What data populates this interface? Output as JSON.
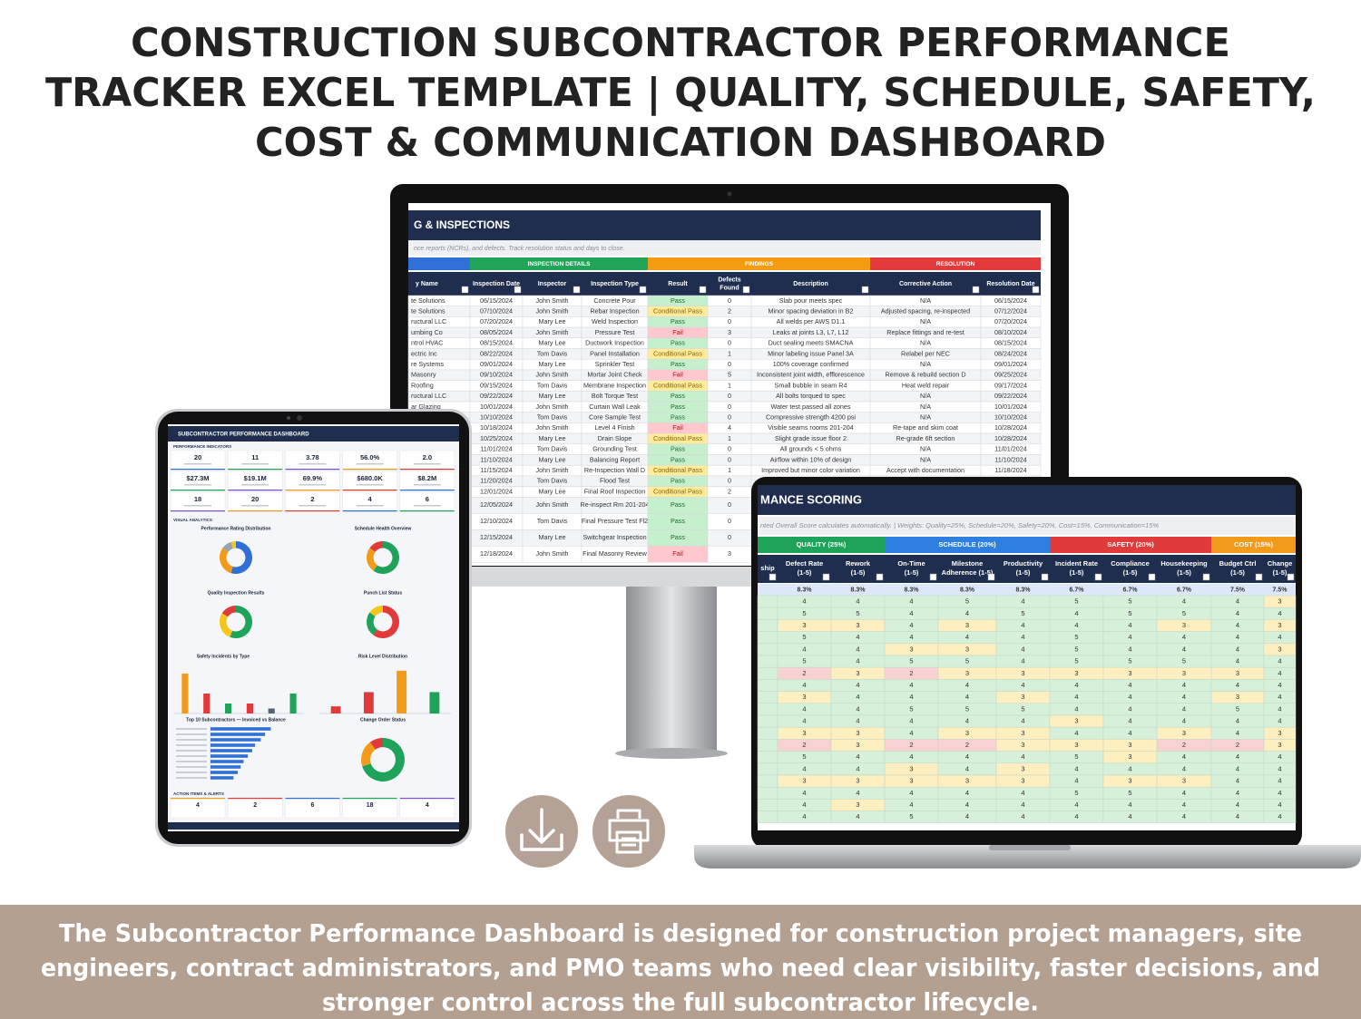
{
  "header": {
    "title_lines": [
      "CONSTRUCTION SUBCONTRACTOR PERFORMANCE",
      "TRACKER EXCEL TEMPLATE | QUALITY, SCHEDULE, SAFETY,",
      "COST & COMMUNICATION DASHBOARD"
    ]
  },
  "monitor": {
    "title": "G & INSPECTIONS",
    "subtitle": "nce reports (NCRs), and defects. Track resolution status and days to close.",
    "groups": [
      {
        "label": "INSPECTION DETAILS",
        "color": "#23a45b"
      },
      {
        "label": "FINDINGS",
        "color": "#f39c12"
      },
      {
        "label": "RESOLUTION",
        "color": "#e33b3b"
      }
    ],
    "columns": [
      [
        "y Name"
      ],
      [
        "Inspection Date"
      ],
      [
        "Inspector"
      ],
      [
        "Inspection Type"
      ],
      [
        "Result"
      ],
      [
        "Defects",
        "Found"
      ],
      [
        "Description"
      ],
      [
        "Corrective Action"
      ],
      [
        "Resolution Date"
      ]
    ],
    "rows": [
      [
        "te Solutions",
        "06/15/2024",
        "John Smith",
        "Concrete Pour",
        "Pass",
        0,
        "Slab pour meets spec",
        "N/A",
        "06/15/2024"
      ],
      [
        "te Solutions",
        "07/10/2024",
        "John Smith",
        "Rebar Inspection",
        "Conditional Pass",
        2,
        "Minor spacing deviation in B2",
        "Adjusted spacing, re-inspected",
        "07/12/2024"
      ],
      [
        "ructural LLC",
        "07/20/2024",
        "Mary Lee",
        "Weld Inspection",
        "Pass",
        0,
        "All welds per AWS D1.1",
        "N/A",
        "07/20/2024"
      ],
      [
        "umbing Co",
        "08/05/2024",
        "John Smith",
        "Pressure Test",
        "Fail",
        3,
        "Leaks at joints L3, L7, L12",
        "Replace fittings and re-test",
        "08/10/2024"
      ],
      [
        "ntrol HVAC",
        "08/15/2024",
        "Mary Lee",
        "Ductwork Inspection",
        "Pass",
        0,
        "Duct sealing meets SMACNA",
        "N/A",
        "08/15/2024"
      ],
      [
        "ectric Inc",
        "08/22/2024",
        "Tom Davis",
        "Panel Installation",
        "Conditional Pass",
        1,
        "Minor labeling issue Panel 3A",
        "Relabel per NEC",
        "08/24/2024"
      ],
      [
        "re Systems",
        "09/01/2024",
        "Mary Lee",
        "Sprinkler Test",
        "Pass",
        0,
        "100% coverage confirmed",
        "N/A",
        "09/01/2024"
      ],
      [
        "Masonry",
        "09/10/2024",
        "John Smith",
        "Mortar Joint Check",
        "Fail",
        5,
        "Inconsistent joint width, efflorescence",
        "Remove & rebuild section D",
        "09/25/2024"
      ],
      [
        "Roofing",
        "09/15/2024",
        "Tom Davis",
        "Membrane Inspection",
        "Conditional Pass",
        1,
        "Small bubble in seam R4",
        "Heat weld repair",
        "09/17/2024"
      ],
      [
        "ructural LLC",
        "09/22/2024",
        "Mary Lee",
        "Bolt Torque Test",
        "Pass",
        0,
        "All bolts torqued to spec",
        "N/A",
        "09/22/2024"
      ],
      [
        "ar Glazing",
        "10/01/2024",
        "John Smith",
        "Curtain Wall Leak",
        "Pass",
        0,
        "Water test passed all zones",
        "N/A",
        "10/01/2024"
      ],
      [
        null,
        "10/10/2024",
        "Tom Davis",
        "Core Sample Test",
        "Pass",
        0,
        "Compressive strength 4200 psi",
        "N/A",
        "10/10/2024"
      ],
      [
        null,
        "10/18/2024",
        "John Smith",
        "Level 4 Finish",
        "Fail",
        4,
        "Visible seams rooms 201-204",
        "Re-tape and skim coat",
        "10/28/2024"
      ],
      [
        null,
        "10/25/2024",
        "Mary Lee",
        "Drain Slope",
        "Conditional Pass",
        1,
        "Slight grade issue floor 2",
        "Re-grade 6ft section",
        "10/28/2024"
      ],
      [
        null,
        "11/01/2024",
        "Tom Davis",
        "Grounding Test",
        "Pass",
        0,
        "All grounds < 5 ohms",
        "N/A",
        "11/01/2024"
      ],
      [
        null,
        "11/10/2024",
        "Mary Lee",
        "Balancing Report",
        "Pass",
        0,
        "Airflow within 10% of design",
        "N/A",
        "11/10/2024"
      ],
      [
        null,
        "11/15/2024",
        "John Smith",
        "Re-Inspection Wall D",
        "Conditional Pass",
        1,
        "Improved but minor color variation",
        "Accept with documentation",
        "11/18/2024"
      ],
      [
        null,
        "11/20/2024",
        "Tom Davis",
        "Flood Test",
        "Pass",
        0,
        null,
        null,
        null
      ],
      [
        null,
        "12/01/2024",
        "Mary Lee",
        "Final Roof Inspection",
        "Conditional Pass",
        2,
        null,
        null,
        null
      ],
      [
        null,
        "12/05/2024",
        "John Smith",
        "Re-inspect Rm 201-204",
        "Pass",
        0,
        null,
        null,
        null
      ],
      [
        null,
        "12/10/2024",
        "Tom Davis",
        "Final Pressure Test Fl2",
        "Pass",
        0,
        null,
        null,
        null
      ],
      [
        null,
        "12/15/2024",
        "Mary Lee",
        "Switchgear Inspection",
        "Pass",
        0,
        null,
        null,
        null
      ],
      [
        null,
        "12/18/2024",
        "John Smith",
        "Final Masonry Review",
        "Fail",
        3,
        null,
        null,
        null
      ]
    ]
  },
  "laptop": {
    "title": "MANCE SCORING",
    "subtitle": "nted Overall Score calculates automatically. | Weights: Quality=25%, Schedule=20%, Safety=20%, Cost=15%, Communication=15%",
    "groups": [
      {
        "label": "QUALITY (25%)",
        "color": "#1fa35a"
      },
      {
        "label": "SCHEDULE (20%)",
        "color": "#2f7fe0"
      },
      {
        "label": "SAFETY (20%)",
        "color": "#e03a3a"
      },
      {
        "label": "COST (15%)",
        "color": "#f29a1a"
      }
    ],
    "columns": [
      [
        "ship"
      ],
      [
        "Defect Rate",
        "(1-5)"
      ],
      [
        "Rework",
        "(1-5)"
      ],
      [
        "On-Time",
        "(1-5)"
      ],
      [
        "Milestone",
        "Adherence (1-5)"
      ],
      [
        "Productivity",
        "(1-5)"
      ],
      [
        "Incident Rate",
        "(1-5)"
      ],
      [
        "Compliance",
        "(1-5)"
      ],
      [
        "Housekeeping",
        "(1-5)"
      ],
      [
        "Budget Ctrl",
        "(1-5)"
      ],
      [
        "Change",
        "(1-5)"
      ]
    ],
    "weights": [
      "8.3%",
      "8.3%",
      "8.3%",
      "8.3%",
      "8.3%",
      "6.7%",
      "6.7%",
      "6.7%",
      "7.5%",
      "7.5%"
    ],
    "rows": [
      [
        4,
        4,
        4,
        5,
        4,
        5,
        5,
        4,
        4,
        3
      ],
      [
        5,
        5,
        4,
        4,
        5,
        4,
        5,
        5,
        4,
        4
      ],
      [
        3,
        3,
        4,
        3,
        4,
        4,
        4,
        3,
        4,
        3
      ],
      [
        5,
        4,
        4,
        4,
        4,
        5,
        4,
        4,
        4,
        4
      ],
      [
        4,
        4,
        3,
        3,
        4,
        5,
        4,
        4,
        4,
        3
      ],
      [
        5,
        4,
        5,
        5,
        4,
        5,
        5,
        5,
        4,
        4
      ],
      [
        2,
        3,
        2,
        3,
        3,
        3,
        3,
        3,
        3,
        4
      ],
      [
        4,
        4,
        4,
        4,
        4,
        4,
        4,
        4,
        4,
        4
      ],
      [
        3,
        4,
        4,
        4,
        3,
        4,
        4,
        4,
        3,
        4
      ],
      [
        4,
        4,
        5,
        5,
        5,
        4,
        4,
        4,
        5,
        4
      ],
      [
        4,
        4,
        4,
        4,
        4,
        3,
        4,
        4,
        4,
        4
      ],
      [
        3,
        3,
        4,
        3,
        3,
        4,
        4,
        3,
        4,
        3
      ],
      [
        2,
        3,
        2,
        2,
        3,
        3,
        3,
        2,
        2,
        3
      ],
      [
        5,
        4,
        4,
        4,
        4,
        5,
        3,
        4,
        4,
        4
      ],
      [
        4,
        4,
        3,
        4,
        3,
        4,
        4,
        4,
        4,
        4
      ],
      [
        3,
        3,
        3,
        3,
        3,
        4,
        3,
        3,
        4,
        4
      ],
      [
        4,
        4,
        4,
        4,
        4,
        5,
        5,
        4,
        4,
        4
      ],
      [
        4,
        3,
        4,
        4,
        4,
        4,
        4,
        4,
        4,
        4
      ],
      [
        4,
        4,
        5,
        4,
        4,
        4,
        4,
        4,
        4,
        4
      ]
    ]
  },
  "tablet": {
    "title": "SUBCONTRACTOR PERFORMANCE DASHBOARD",
    "kpi_section": "PERFORMANCE INDICATORS",
    "kpis": [
      [
        "20",
        "11",
        "3.78",
        "56.0%",
        "2.0"
      ],
      [
        "$27.3M",
        "$19.1M",
        "69.9%",
        "$680.0K",
        "$8.2M"
      ],
      [
        "18",
        "20",
        "2",
        "4",
        "6"
      ]
    ],
    "analytics_section": "VISUAL ANALYTICS",
    "charts": [
      {
        "title": "Performance Rating Distribution",
        "kind": "donut",
        "values": [
          11,
          6,
          2,
          1
        ],
        "colors": [
          "#2f6fd6",
          "#f29a1a",
          "#9aa3ad",
          "#f5c518"
        ]
      },
      {
        "title": "Schedule Health Overview",
        "kind": "donut",
        "values": [
          12,
          5,
          3
        ],
        "colors": [
          "#1fa35a",
          "#f29a1a",
          "#e03a3a"
        ]
      },
      {
        "title": "Quality Inspection Results",
        "kind": "donut",
        "values": [
          56,
          28,
          16
        ],
        "colors": [
          "#1fa35a",
          "#f5c518",
          "#e03a3a"
        ]
      },
      {
        "title": "Punch List Status",
        "kind": "donut",
        "values": [
          60,
          25,
          15
        ],
        "colors": [
          "#e03a3a",
          "#1fa35a",
          "#f5c518"
        ]
      },
      {
        "title": "Safety Incidents by Type",
        "kind": "bar",
        "values": [
          4,
          2,
          1,
          1,
          0.5,
          2
        ],
        "colors": [
          "#f29a1a",
          "#e03a3a",
          "#1fa35a",
          "#e03a3a",
          "#5a6470",
          "#1fa35a"
        ],
        "ylim": [
          0,
          5
        ]
      },
      {
        "title": "Risk Level Distribution",
        "kind": "bar",
        "values": [
          1,
          3,
          6,
          3
        ],
        "colors": [
          "#e03a3a",
          "#e03a3a",
          "#f29a1a",
          "#1fa35a"
        ],
        "ylim": [
          0,
          7
        ]
      },
      {
        "title": "Top 10 Subcontractors — Invoiced vs Balance",
        "kind": "hbar",
        "values": [
          4.2,
          3.8,
          3.5,
          3.1,
          2.9,
          2.6,
          2.3,
          2.1,
          1.9,
          1.6
        ],
        "colors": [
          "#2f6fd6"
        ],
        "xlim": [
          0,
          6
        ]
      },
      {
        "title": "Change Order Status",
        "kind": "donut",
        "values": [
          70,
          20,
          10
        ],
        "colors": [
          "#1fa35a",
          "#f29a1a",
          "#e03a3a"
        ]
      }
    ],
    "alerts_section": "ACTION ITEMS & ALERTS",
    "alerts": [
      "4",
      "2",
      "6",
      "18",
      "4"
    ]
  },
  "footer": {
    "lines": [
      "The Subcontractor Performance Dashboard is designed for construction project managers, site",
      "engineers, contract administrators, and PMO teams who need clear visibility, faster decisions, and",
      "stronger control across the full subcontractor lifecycle."
    ]
  }
}
